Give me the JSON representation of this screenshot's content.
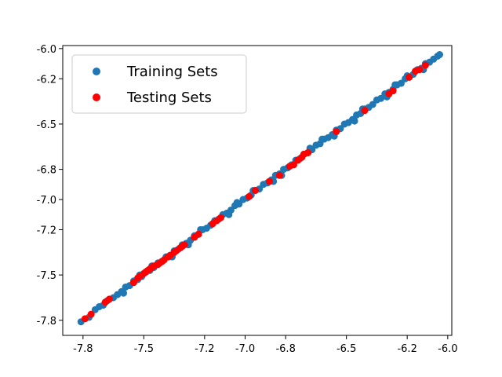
{
  "chart_data": {
    "type": "scatter",
    "title": "",
    "xlabel": "",
    "ylabel": "",
    "xlim": [
      -7.9,
      -5.98
    ],
    "ylim": [
      -7.9,
      -5.98
    ],
    "xticks": [
      -7.8,
      -7.5,
      -7.2,
      -7.0,
      -6.8,
      -6.5,
      -6.2,
      -6.0
    ],
    "xtick_labels": [
      "-7.8",
      "-7.5",
      "-7.2",
      "-7.0",
      "-6.8",
      "-6.5",
      "-6.2",
      "-6.0"
    ],
    "yticks": [
      -6.0,
      -6.2,
      -6.5,
      -6.8,
      -7.0,
      -7.2,
      -7.5,
      -7.8
    ],
    "ytick_labels": [
      "-6.0",
      "-6.2",
      "-6.5",
      "-6.8",
      "-7.0",
      "-7.2",
      "-7.5",
      "-7.8"
    ],
    "grid": false,
    "legend": "top-left",
    "fit_line": {
      "x": [
        -7.8,
        -6.04
      ],
      "y": [
        -7.8,
        -6.04
      ],
      "color": "#000000"
    },
    "series": [
      {
        "name": "Training Sets",
        "color": "#1f77b4",
        "points": [
          [
            -7.81,
            -7.81
          ],
          [
            -7.77,
            -7.78
          ],
          [
            -7.74,
            -7.73
          ],
          [
            -7.72,
            -7.71
          ],
          [
            -7.7,
            -7.7
          ],
          [
            -7.68,
            -7.67
          ],
          [
            -7.65,
            -7.65
          ],
          [
            -7.63,
            -7.63
          ],
          [
            -7.61,
            -7.61
          ],
          [
            -7.59,
            -7.58
          ],
          [
            -7.57,
            -7.57
          ],
          [
            -7.55,
            -7.54
          ],
          [
            -7.53,
            -7.53
          ],
          [
            -7.51,
            -7.51
          ],
          [
            -7.49,
            -7.48
          ],
          [
            -7.47,
            -7.47
          ],
          [
            -7.45,
            -7.45
          ],
          [
            -7.43,
            -7.42
          ],
          [
            -7.41,
            -7.41
          ],
          [
            -7.39,
            -7.38
          ],
          [
            -7.37,
            -7.37
          ],
          [
            -7.35,
            -7.34
          ],
          [
            -7.33,
            -7.33
          ],
          [
            -7.31,
            -7.3
          ],
          [
            -7.29,
            -7.29
          ],
          [
            -7.27,
            -7.27
          ],
          [
            -7.25,
            -7.24
          ],
          [
            -7.23,
            -7.23
          ],
          [
            -7.21,
            -7.2
          ],
          [
            -7.19,
            -7.19
          ],
          [
            -7.17,
            -7.17
          ],
          [
            -7.15,
            -7.14
          ],
          [
            -7.13,
            -7.13
          ],
          [
            -7.11,
            -7.1
          ],
          [
            -7.09,
            -7.09
          ],
          [
            -7.07,
            -7.07
          ],
          [
            -7.05,
            -7.04
          ],
          [
            -7.03,
            -7.03
          ],
          [
            -7.01,
            -7.0
          ],
          [
            -6.99,
            -6.99
          ],
          [
            -6.97,
            -6.97
          ],
          [
            -6.95,
            -6.94
          ],
          [
            -6.93,
            -6.93
          ],
          [
            -6.91,
            -6.9
          ],
          [
            -6.89,
            -6.89
          ],
          [
            -6.87,
            -6.87
          ],
          [
            -6.85,
            -6.84
          ],
          [
            -6.83,
            -6.83
          ],
          [
            -6.81,
            -6.8
          ],
          [
            -6.79,
            -6.79
          ],
          [
            -6.77,
            -6.77
          ],
          [
            -6.75,
            -6.74
          ],
          [
            -6.73,
            -6.73
          ],
          [
            -6.71,
            -6.7
          ],
          [
            -6.69,
            -6.69
          ],
          [
            -6.67,
            -6.67
          ],
          [
            -6.65,
            -6.64
          ],
          [
            -6.63,
            -6.63
          ],
          [
            -6.61,
            -6.6
          ],
          [
            -6.59,
            -6.59
          ],
          [
            -6.57,
            -6.57
          ],
          [
            -6.55,
            -6.54
          ],
          [
            -6.53,
            -6.53
          ],
          [
            -6.51,
            -6.5
          ],
          [
            -6.49,
            -6.49
          ],
          [
            -6.47,
            -6.47
          ],
          [
            -6.45,
            -6.44
          ],
          [
            -6.43,
            -6.43
          ],
          [
            -6.41,
            -6.4
          ],
          [
            -6.39,
            -6.39
          ],
          [
            -6.37,
            -6.37
          ],
          [
            -6.35,
            -6.34
          ],
          [
            -6.33,
            -6.33
          ],
          [
            -6.31,
            -6.3
          ],
          [
            -6.29,
            -6.29
          ],
          [
            -6.27,
            -6.27
          ],
          [
            -6.25,
            -6.24
          ],
          [
            -6.23,
            -6.23
          ],
          [
            -6.21,
            -6.2
          ],
          [
            -6.19,
            -6.19
          ],
          [
            -6.17,
            -6.17
          ],
          [
            -6.15,
            -6.14
          ],
          [
            -6.13,
            -6.13
          ],
          [
            -6.11,
            -6.1
          ],
          [
            -6.09,
            -6.09
          ],
          [
            -6.07,
            -6.07
          ],
          [
            -6.05,
            -6.05
          ],
          [
            -6.04,
            -6.04
          ],
          [
            -7.6,
            -7.62
          ],
          [
            -7.46,
            -7.44
          ],
          [
            -7.36,
            -7.38
          ],
          [
            -7.22,
            -7.2
          ],
          [
            -7.08,
            -7.1
          ],
          [
            -6.96,
            -6.94
          ],
          [
            -6.82,
            -6.84
          ],
          [
            -6.68,
            -6.66
          ],
          [
            -6.56,
            -6.58
          ],
          [
            -6.42,
            -6.4
          ],
          [
            -6.3,
            -6.32
          ],
          [
            -6.2,
            -6.18
          ],
          [
            -6.12,
            -6.14
          ],
          [
            -7.52,
            -7.5
          ],
          [
            -7.28,
            -7.3
          ],
          [
            -7.04,
            -7.02
          ],
          [
            -6.86,
            -6.88
          ],
          [
            -6.62,
            -6.6
          ],
          [
            -6.46,
            -6.48
          ],
          [
            -6.26,
            -6.24
          ]
        ]
      },
      {
        "name": "Testing Sets",
        "color": "#ff0000",
        "points": [
          [
            -7.79,
            -7.79
          ],
          [
            -7.76,
            -7.76
          ],
          [
            -7.69,
            -7.68
          ],
          [
            -7.67,
            -7.66
          ],
          [
            -7.55,
            -7.55
          ],
          [
            -7.53,
            -7.52
          ],
          [
            -7.52,
            -7.51
          ],
          [
            -7.5,
            -7.49
          ],
          [
            -7.49,
            -7.48
          ],
          [
            -7.48,
            -7.47
          ],
          [
            -7.47,
            -7.46
          ],
          [
            -7.46,
            -7.45
          ],
          [
            -7.45,
            -7.44
          ],
          [
            -7.43,
            -7.43
          ],
          [
            -7.42,
            -7.42
          ],
          [
            -7.41,
            -7.41
          ],
          [
            -7.4,
            -7.4
          ],
          [
            -7.38,
            -7.38
          ],
          [
            -7.37,
            -7.37
          ],
          [
            -7.35,
            -7.35
          ],
          [
            -7.34,
            -7.34
          ],
          [
            -7.32,
            -7.32
          ],
          [
            -7.31,
            -7.31
          ],
          [
            -7.3,
            -7.3
          ],
          [
            -7.25,
            -7.25
          ],
          [
            -7.23,
            -7.23
          ],
          [
            -7.16,
            -7.16
          ],
          [
            -7.14,
            -7.14
          ],
          [
            -7.12,
            -7.12
          ],
          [
            -6.98,
            -6.98
          ],
          [
            -6.95,
            -6.94
          ],
          [
            -6.88,
            -6.88
          ],
          [
            -6.83,
            -6.84
          ],
          [
            -6.78,
            -6.78
          ],
          [
            -6.76,
            -6.77
          ],
          [
            -6.74,
            -6.74
          ],
          [
            -6.72,
            -6.72
          ],
          [
            -6.71,
            -6.7
          ],
          [
            -6.69,
            -6.69
          ],
          [
            -6.55,
            -6.55
          ],
          [
            -6.41,
            -6.41
          ],
          [
            -6.29,
            -6.3
          ],
          [
            -6.27,
            -6.28
          ],
          [
            -6.19,
            -6.19
          ],
          [
            -6.16,
            -6.15
          ],
          [
            -6.14,
            -6.14
          ],
          [
            -6.11,
            -6.11
          ]
        ]
      }
    ]
  }
}
